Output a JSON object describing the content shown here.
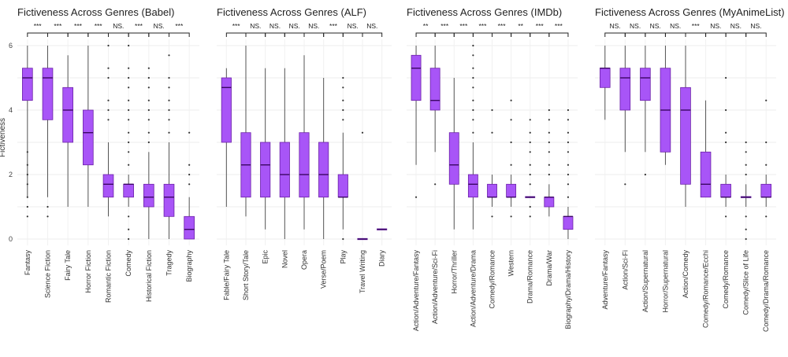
{
  "figure": {
    "y_label": "Fictiveness"
  },
  "chart_data": [
    {
      "type": "box",
      "title": "Fictiveness Across Genres (Babel)",
      "ylim": [
        0,
        6
      ],
      "yticks": [
        0,
        2,
        4,
        6
      ],
      "grid": true,
      "categories": [
        "Fantasy",
        "Science Fiction",
        "Fairy Tale",
        "Horror Fiction",
        "Romantic Fiction",
        "Comedy",
        "Historical Fiction",
        "Tragedy",
        "Biography"
      ],
      "significance": [
        "***",
        "***",
        "***",
        "***",
        "NS.",
        "***",
        "NS.",
        "***"
      ],
      "boxes": [
        {
          "min": 1.3,
          "q1": 4.3,
          "median": 5.0,
          "q3": 5.3,
          "max": 6.0,
          "outliers": [
            0.7,
            1.0,
            1.3,
            1.7,
            2.0,
            2.3,
            2.7
          ]
        },
        {
          "min": 1.3,
          "q1": 3.7,
          "median": 5.0,
          "q3": 5.3,
          "max": 6.0,
          "outliers": [
            0.7,
            1.0
          ]
        },
        {
          "min": 1.0,
          "q1": 3.0,
          "median": 4.0,
          "q3": 4.7,
          "max": 5.7,
          "outliers": []
        },
        {
          "min": 1.0,
          "q1": 2.3,
          "median": 3.3,
          "q3": 4.0,
          "max": 6.0,
          "outliers": []
        },
        {
          "min": 0.7,
          "q1": 1.3,
          "median": 1.7,
          "q3": 2.0,
          "max": 3.0,
          "outliers": [
            3.7,
            4.0,
            4.3,
            5.0,
            5.3,
            6.0
          ]
        },
        {
          "min": 1.0,
          "q1": 1.3,
          "median": 1.7,
          "q3": 1.7,
          "max": 2.0,
          "outliers": [
            0,
            0.3,
            0.7,
            2.3,
            2.7,
            3.0,
            3.3,
            3.7,
            4.0,
            4.3,
            4.7,
            5.0,
            5.3,
            6.0
          ]
        },
        {
          "min": 0.0,
          "q1": 1.0,
          "median": 1.3,
          "q3": 1.7,
          "max": 2.7,
          "outliers": [
            3.0,
            3.3,
            3.7,
            4.0,
            4.3,
            4.7,
            5.0,
            5.3
          ]
        },
        {
          "min": 0.0,
          "q1": 0.7,
          "median": 1.3,
          "q3": 1.7,
          "max": 3.0,
          "outliers": [
            3.3,
            3.7,
            4.0,
            4.3,
            4.7,
            5.0,
            5.7
          ]
        },
        {
          "min": 0.0,
          "q1": 0.0,
          "median": 0.3,
          "q3": 0.7,
          "max": 1.3,
          "outliers": [
            1.7,
            2.0,
            2.3,
            3.3
          ]
        }
      ]
    },
    {
      "type": "box",
      "title": "Fictiveness Across Genres (ALF)",
      "ylim": [
        0,
        6
      ],
      "grid": true,
      "categories": [
        "Fable/Fairy Tale",
        "Short Story/Tale",
        "Epic",
        "Novel",
        "Opera",
        "Verse/Poem",
        "Play",
        "Travel Writing",
        "Diary"
      ],
      "significance": [
        "***",
        "NS.",
        "NS.",
        "NS.",
        "NS.",
        "***",
        "NS.",
        "NS."
      ],
      "boxes": [
        {
          "min": 1.0,
          "q1": 3.0,
          "median": 4.7,
          "q3": 5.0,
          "max": 5.3,
          "outliers": []
        },
        {
          "min": 0.7,
          "q1": 1.3,
          "median": 2.3,
          "q3": 3.3,
          "max": 6.0,
          "outliers": []
        },
        {
          "min": 0.3,
          "q1": 1.3,
          "median": 2.3,
          "q3": 3.0,
          "max": 5.3,
          "outliers": []
        },
        {
          "min": 0.0,
          "q1": 1.3,
          "median": 2.0,
          "q3": 3.0,
          "max": 5.3,
          "outliers": []
        },
        {
          "min": 0.3,
          "q1": 1.3,
          "median": 2.0,
          "q3": 3.3,
          "max": 5.7,
          "outliers": []
        },
        {
          "min": 0.0,
          "q1": 1.3,
          "median": 2.0,
          "q3": 3.0,
          "max": 5.0,
          "outliers": []
        },
        {
          "min": 0.3,
          "q1": 1.3,
          "median": 1.3,
          "q3": 2.0,
          "max": 3.3,
          "outliers": [
            0,
            3.7,
            4.0,
            4.3,
            4.7,
            5.0
          ]
        },
        {
          "min": 0.0,
          "q1": 0.0,
          "median": 0.0,
          "q3": 0.0,
          "max": 0.0,
          "outliers": [
            3.3
          ]
        },
        {
          "min": 0.3,
          "q1": 0.3,
          "median": 0.3,
          "q3": 0.3,
          "max": 0.3,
          "outliers": []
        }
      ]
    },
    {
      "type": "box",
      "title": "Fictiveness Across Genres (IMDb)",
      "ylim": [
        0,
        6
      ],
      "grid": true,
      "categories": [
        "Action/Adventure/Fantasy",
        "Action/Adventure/Sci-Fi",
        "Horror/Thriller",
        "Action/Adventure/Drama",
        "Comedy/Romance",
        "Western",
        "Drama/Romance",
        "Drama/War",
        "Biography/Drama/History"
      ],
      "significance": [
        "**",
        "***",
        "***",
        "***",
        "***",
        "**",
        "***",
        "***"
      ],
      "boxes": [
        {
          "min": 2.3,
          "q1": 4.3,
          "median": 5.3,
          "q3": 5.7,
          "max": 6.0,
          "outliers": [
            1.3
          ]
        },
        {
          "min": 2.7,
          "q1": 4.0,
          "median": 4.3,
          "q3": 5.3,
          "max": 6.0,
          "outliers": [
            1.7
          ]
        },
        {
          "min": 0.3,
          "q1": 1.7,
          "median": 2.3,
          "q3": 3.3,
          "max": 5.0,
          "outliers": []
        },
        {
          "min": 0.3,
          "q1": 1.3,
          "median": 1.7,
          "q3": 2.0,
          "max": 3.0,
          "outliers": [
            3.3,
            3.7,
            4.0,
            4.3,
            4.7,
            5.0,
            5.3,
            5.7,
            6.0
          ]
        },
        {
          "min": 1.0,
          "q1": 1.3,
          "median": 1.3,
          "q3": 1.7,
          "max": 2.0,
          "outliers": [
            0.7,
            3.3,
            4.0
          ]
        },
        {
          "min": 1.0,
          "q1": 1.3,
          "median": 1.3,
          "q3": 1.7,
          "max": 2.0,
          "outliers": [
            0.7,
            2.3,
            3.0,
            3.7,
            4.3
          ]
        },
        {
          "min": 1.3,
          "q1": 1.3,
          "median": 1.3,
          "q3": 1.3,
          "max": 1.3,
          "outliers": [
            0.7,
            1.0,
            1.7,
            2.0,
            2.3,
            2.7,
            3.0,
            3.3,
            3.7
          ]
        },
        {
          "min": 0.7,
          "q1": 1.0,
          "median": 1.3,
          "q3": 1.3,
          "max": 1.7,
          "outliers": [
            2.0,
            2.3,
            2.7,
            3.0,
            3.3,
            3.7,
            4.0
          ]
        },
        {
          "min": 0.0,
          "q1": 0.3,
          "median": 0.7,
          "q3": 0.7,
          "max": 1.0,
          "outliers": [
            1.3,
            1.7,
            2.0,
            2.3,
            2.7,
            3.0,
            3.3,
            3.7,
            4.0
          ]
        }
      ]
    },
    {
      "type": "box",
      "title": "Fictiveness Across Genres (MyAnimeList)",
      "ylim": [
        0,
        6
      ],
      "grid": true,
      "categories": [
        "Adventure/Fantasy",
        "Action/Sci-Fi",
        "Action/Supernatural",
        "Horror/Supernatural",
        "Action/Comedy",
        "Comedy/Romance/Ecchi",
        "Comedy/Romance",
        "Comedy/Slice of Life",
        "Comedy/Drama/Romance"
      ],
      "significance": [
        "NS.",
        "NS.",
        "NS.",
        "NS.",
        "***",
        "NS.",
        "NS.",
        "NS."
      ],
      "boxes": [
        {
          "min": 3.7,
          "q1": 4.7,
          "median": 5.3,
          "q3": 5.3,
          "max": 6.0,
          "outliers": []
        },
        {
          "min": 2.7,
          "q1": 4.0,
          "median": 5.0,
          "q3": 5.3,
          "max": 6.0,
          "outliers": [
            1.7
          ]
        },
        {
          "min": 2.7,
          "q1": 4.3,
          "median": 5.0,
          "q3": 5.3,
          "max": 6.0,
          "outliers": [
            2.0
          ]
        },
        {
          "min": 2.3,
          "q1": 2.7,
          "median": 4.0,
          "q3": 5.3,
          "max": 6.0,
          "outliers": []
        },
        {
          "min": 1.0,
          "q1": 1.7,
          "median": 4.0,
          "q3": 4.7,
          "max": 6.0,
          "outliers": []
        },
        {
          "min": 1.3,
          "q1": 1.3,
          "median": 1.7,
          "q3": 2.7,
          "max": 4.3,
          "outliers": []
        },
        {
          "min": 1.0,
          "q1": 1.3,
          "median": 1.3,
          "q3": 1.7,
          "max": 2.0,
          "outliers": [
            0.7,
            3.0,
            3.3,
            4.0,
            5.0
          ]
        },
        {
          "min": 1.0,
          "q1": 1.3,
          "median": 1.3,
          "q3": 1.3,
          "max": 1.7,
          "outliers": [
            0,
            0.3,
            0.7,
            2.0,
            2.3,
            2.7,
            3.0
          ]
        },
        {
          "min": 1.0,
          "q1": 1.3,
          "median": 1.3,
          "q3": 1.7,
          "max": 2.0,
          "outliers": [
            0.7,
            2.3,
            3.0,
            4.3
          ]
        }
      ]
    }
  ]
}
